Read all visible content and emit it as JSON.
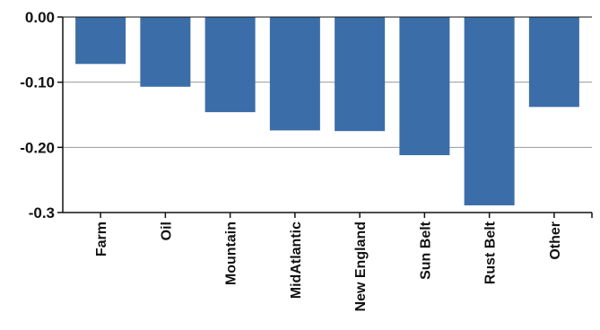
{
  "chart_data": {
    "type": "bar",
    "title": "",
    "xlabel": "",
    "ylabel": "",
    "categories": [
      "Farm",
      "Oil",
      "Mountain",
      "MidAtlantic",
      "New England",
      "Sun Belt",
      "Rust Belt",
      "Other"
    ],
    "values": [
      -0.072,
      -0.107,
      -0.146,
      -0.174,
      -0.175,
      -0.212,
      -0.289,
      -0.138
    ],
    "ylim": [
      -0.3,
      0.0
    ],
    "yticks": [
      0.0,
      -0.1,
      -0.2,
      -0.3
    ],
    "ytick_labels": [
      "0.00",
      "-0.10",
      "-0.20",
      "-0.3"
    ],
    "grid": true,
    "bar_color": "#3B6EA8",
    "grid_color": "#9a9a9a",
    "axis_color": "#111111"
  }
}
